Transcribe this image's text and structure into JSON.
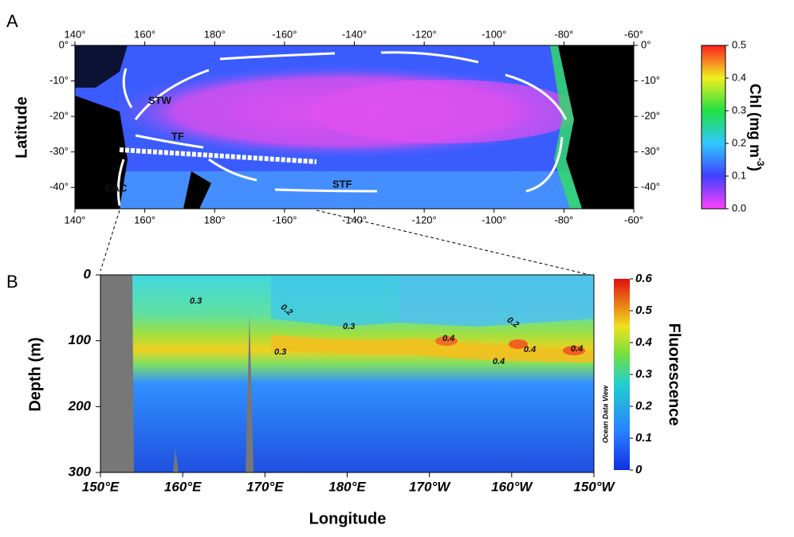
{
  "chart_data": [
    {
      "type": "map",
      "panel_label": "A",
      "y_label": "Latitude",
      "xlim": [
        140,
        -60
      ],
      "xticks": [
        {
          "value": 140,
          "label": "140°"
        },
        {
          "value": 160,
          "label": "160°"
        },
        {
          "value": 180,
          "label": "180°"
        },
        {
          "value": -160,
          "label": "-160°"
        },
        {
          "value": -140,
          "label": "-140°"
        },
        {
          "value": -120,
          "label": "-120°"
        },
        {
          "value": -100,
          "label": "-100°"
        },
        {
          "value": -80,
          "label": "-80°"
        },
        {
          "value": -60,
          "label": "-60°"
        }
      ],
      "ylim": [
        -46,
        0
      ],
      "yticks": [
        {
          "value": 0,
          "label": "0°"
        },
        {
          "value": -10,
          "label": "-10°"
        },
        {
          "value": -20,
          "label": "-20°"
        },
        {
          "value": -30,
          "label": "-30°"
        },
        {
          "value": -40,
          "label": "-40°"
        }
      ],
      "annotations": [
        "STW",
        "TF",
        "EAC",
        "STF"
      ],
      "colorbar_label": "Chl (mg m",
      "colorbar_label_sup": "-3",
      "colorbar_label_end": ")",
      "colorbar_lim": [
        0,
        0.5
      ],
      "colorbar_ticks": [
        {
          "value": 0,
          "label": "0.0"
        },
        0.1,
        0.2,
        0.3,
        0.4,
        0.5
      ]
    },
    {
      "type": "contour",
      "panel_label": "B",
      "x_label": "Longitude",
      "y_label": "Depth (m)",
      "xlim": [
        150,
        -150
      ],
      "xticks": [
        {
          "value": 150,
          "label": "150°E"
        },
        {
          "value": 160,
          "label": "160°E"
        },
        {
          "value": 170,
          "label": "170°E"
        },
        {
          "value": 180,
          "label": "180°E"
        },
        {
          "value": -170,
          "label": "170°W"
        },
        {
          "value": -160,
          "label": "160°W"
        },
        {
          "value": -150,
          "label": "150°W"
        }
      ],
      "ylim": [
        300,
        0
      ],
      "yticks": [
        0,
        100,
        200,
        300
      ],
      "contour_labels": [
        "0.3",
        "0.2",
        "0.3",
        "0.3",
        "0.4",
        "0.2",
        "0.4",
        "0.4",
        "0.4"
      ],
      "watermark": "Ocean Data View",
      "colorbar_label": "Fluorescence",
      "colorbar_lim": [
        0,
        0.6
      ],
      "colorbar_ticks": [
        0,
        0.1,
        0.2,
        0.3,
        0.4,
        0.5,
        0.6
      ]
    }
  ]
}
